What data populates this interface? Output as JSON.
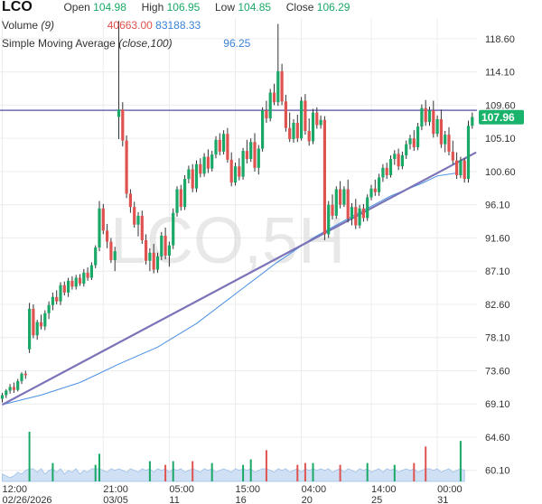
{
  "header": {
    "symbol": "LCO",
    "open_label": "Open",
    "open_value": "104.98",
    "high_label": "High",
    "high_value": "106.95",
    "low_label": "Low",
    "low_value": "104.85",
    "close_label": "Close",
    "close_value": "106.29",
    "volume_label": "Volume",
    "volume_param": "(9)",
    "volume_value_1": "40663.00",
    "volume_value_2": "83188.33",
    "sma_label": "Simple Moving Average",
    "sma_param": "(close,100)",
    "sma_value": "96.25"
  },
  "watermark": "LCO,5H",
  "last_price_label": "107.96",
  "colors": {
    "up": "#1aa867",
    "down": "#e0524f",
    "sma": "#4a90e2",
    "trendline": "#7a73b8",
    "volume": "#a9c8ea",
    "badge": "#19b36b"
  },
  "chart_data": {
    "type": "candlestick",
    "yticks": [
      "118.60",
      "114.10",
      "109.60",
      "105.10",
      "100.60",
      "96.10",
      "91.60",
      "87.10",
      "82.60",
      "78.10",
      "73.60",
      "69.10",
      "64.60",
      "60.10"
    ],
    "xticks": [
      {
        "i": 0,
        "top": "12:00",
        "bottom": "02/26/2026"
      },
      {
        "i": 26,
        "top": "21:00",
        "bottom": "03/05"
      },
      {
        "i": 43,
        "top": "05:00",
        "bottom": "11"
      },
      {
        "i": 60,
        "top": "15:00",
        "bottom": "16"
      },
      {
        "i": 77,
        "top": "04:00",
        "bottom": "20"
      },
      {
        "i": 95,
        "top": "14:00",
        "bottom": "25"
      },
      {
        "i": 112,
        "top": "00:00",
        "bottom": "31"
      }
    ],
    "ylim": [
      58.6,
      121.4
    ],
    "candles": [
      [
        69.8,
        70.6,
        69.3,
        70.3
      ],
      [
        70.3,
        71.1,
        69.9,
        70.9
      ],
      [
        70.9,
        71.8,
        70.5,
        71.4
      ],
      [
        71.4,
        72.0,
        70.6,
        71.0
      ],
      [
        71.0,
        72.5,
        70.8,
        72.2
      ],
      [
        72.2,
        73.4,
        71.8,
        73.2
      ],
      [
        73.2,
        73.6,
        72.5,
        73.0
      ],
      [
        76.5,
        82.8,
        76.0,
        82.0
      ],
      [
        82.0,
        82.6,
        78.0,
        78.4
      ],
      [
        78.4,
        80.5,
        77.8,
        80.2
      ],
      [
        80.2,
        81.2,
        79.2,
        79.6
      ],
      [
        79.6,
        81.8,
        79.1,
        81.4
      ],
      [
        81.4,
        83.0,
        80.6,
        82.5
      ],
      [
        82.5,
        84.2,
        81.8,
        83.6
      ],
      [
        83.6,
        84.5,
        82.6,
        83.0
      ],
      [
        83.0,
        85.6,
        82.5,
        85.2
      ],
      [
        85.2,
        85.7,
        83.8,
        84.2
      ],
      [
        84.2,
        86.2,
        83.6,
        85.8
      ],
      [
        85.8,
        86.4,
        84.6,
        85.0
      ],
      [
        85.0,
        86.6,
        84.6,
        86.2
      ],
      [
        86.2,
        86.7,
        85.1,
        85.4
      ],
      [
        85.4,
        87.4,
        85.0,
        86.9
      ],
      [
        86.9,
        87.6,
        85.8,
        86.2
      ],
      [
        86.2,
        88.3,
        85.9,
        87.9
      ],
      [
        87.9,
        90.6,
        87.5,
        90.3
      ],
      [
        90.3,
        96.6,
        89.8,
        95.6
      ],
      [
        95.6,
        96.2,
        92.1,
        92.6
      ],
      [
        92.6,
        93.5,
        90.2,
        91.1
      ],
      [
        91.1,
        91.6,
        88.2,
        88.6
      ],
      [
        88.6,
        90.4,
        87.1,
        89.8
      ],
      [
        108.0,
        121.0,
        105.0,
        109.0
      ],
      [
        109.0,
        110.0,
        104.0,
        104.8
      ],
      [
        104.8,
        105.5,
        97.0,
        97.6
      ],
      [
        97.6,
        98.2,
        95.0,
        95.8
      ],
      [
        95.8,
        96.5,
        93.0,
        93.4
      ],
      [
        93.4,
        95.1,
        91.8,
        94.6
      ],
      [
        94.6,
        95.3,
        90.8,
        91.3
      ],
      [
        91.3,
        92.1,
        88.0,
        88.5
      ],
      [
        88.5,
        90.2,
        87.1,
        89.6
      ],
      [
        89.6,
        90.8,
        86.8,
        87.3
      ],
      [
        87.3,
        89.6,
        86.9,
        89.1
      ],
      [
        89.1,
        92.4,
        88.6,
        91.9
      ],
      [
        91.9,
        93.0,
        88.7,
        89.2
      ],
      [
        89.2,
        91.1,
        87.7,
        90.6
      ],
      [
        90.6,
        95.6,
        90.1,
        95.0
      ],
      [
        95.0,
        98.6,
        94.5,
        98.2
      ],
      [
        98.2,
        98.8,
        95.3,
        95.8
      ],
      [
        95.8,
        100.1,
        95.4,
        99.6
      ],
      [
        99.6,
        101.4,
        99.0,
        100.9
      ],
      [
        100.9,
        101.6,
        97.8,
        98.3
      ],
      [
        98.3,
        102.1,
        97.8,
        101.6
      ],
      [
        101.6,
        102.4,
        99.8,
        100.3
      ],
      [
        100.3,
        103.1,
        99.9,
        102.6
      ],
      [
        102.6,
        103.6,
        100.4,
        101.0
      ],
      [
        101.0,
        103.4,
        100.6,
        102.9
      ],
      [
        102.9,
        105.4,
        102.4,
        104.9
      ],
      [
        104.9,
        105.8,
        102.8,
        103.3
      ],
      [
        103.3,
        106.2,
        102.9,
        105.7
      ],
      [
        105.7,
        106.5,
        101.8,
        102.2
      ],
      [
        102.2,
        103.2,
        98.6,
        99.1
      ],
      [
        99.1,
        101.8,
        98.7,
        101.3
      ],
      [
        101.3,
        102.4,
        99.4,
        99.9
      ],
      [
        99.9,
        103.8,
        99.5,
        103.4
      ],
      [
        103.4,
        104.9,
        101.7,
        102.3
      ],
      [
        102.3,
        105.1,
        101.9,
        104.6
      ],
      [
        104.6,
        105.8,
        100.6,
        101.1
      ],
      [
        101.1,
        104.2,
        100.2,
        103.7
      ],
      [
        103.7,
        109.3,
        103.3,
        108.9
      ],
      [
        108.9,
        110.2,
        107.2,
        107.8
      ],
      [
        107.8,
        111.8,
        107.4,
        111.3
      ],
      [
        111.3,
        112.5,
        109.6,
        110.0
      ],
      [
        110.0,
        120.6,
        109.5,
        114.2
      ],
      [
        114.2,
        115.2,
        109.6,
        110.1
      ],
      [
        110.1,
        111.0,
        106.0,
        106.5
      ],
      [
        106.5,
        108.6,
        104.6,
        105.0
      ],
      [
        105.0,
        107.7,
        104.5,
        107.2
      ],
      [
        107.2,
        108.3,
        104.6,
        105.1
      ],
      [
        105.1,
        110.7,
        104.8,
        110.2
      ],
      [
        110.2,
        111.1,
        105.6,
        106.1
      ],
      [
        106.1,
        107.8,
        104.1,
        104.7
      ],
      [
        104.7,
        109.1,
        104.3,
        108.6
      ],
      [
        108.6,
        109.3,
        106.4,
        106.9
      ],
      [
        106.9,
        108.2,
        106.4,
        107.6
      ],
      [
        107.6,
        108.1,
        91.3,
        92.1
      ],
      [
        92.1,
        96.6,
        91.6,
        96.1
      ],
      [
        96.1,
        97.5,
        94.1,
        94.6
      ],
      [
        94.6,
        98.6,
        94.2,
        98.2
      ],
      [
        98.2,
        99.3,
        95.6,
        96.1
      ],
      [
        96.1,
        98.6,
        95.8,
        98.2
      ],
      [
        98.2,
        99.5,
        93.7,
        94.2
      ],
      [
        94.2,
        96.3,
        93.3,
        95.8
      ],
      [
        95.8,
        96.9,
        92.8,
        93.3
      ],
      [
        93.3,
        96.1,
        92.9,
        95.6
      ],
      [
        95.6,
        96.2,
        93.8,
        94.3
      ],
      [
        94.3,
        97.5,
        93.9,
        97.1
      ],
      [
        97.1,
        98.8,
        96.7,
        98.3
      ],
      [
        98.3,
        99.5,
        97.3,
        97.8
      ],
      [
        97.8,
        100.3,
        97.3,
        99.8
      ],
      [
        99.8,
        101.6,
        99.2,
        101.1
      ],
      [
        101.1,
        101.8,
        99.6,
        100.1
      ],
      [
        100.1,
        102.8,
        99.8,
        102.3
      ],
      [
        102.3,
        103.5,
        101.5,
        103.0
      ],
      [
        103.0,
        103.7,
        100.8,
        101.3
      ],
      [
        101.3,
        103.3,
        100.9,
        102.8
      ],
      [
        102.8,
        104.8,
        102.3,
        104.3
      ],
      [
        104.3,
        105.6,
        103.6,
        105.1
      ],
      [
        105.1,
        106.2,
        103.4,
        103.9
      ],
      [
        103.9,
        107.2,
        103.5,
        106.7
      ],
      [
        106.7,
        109.7,
        106.2,
        109.2
      ],
      [
        109.2,
        110.3,
        106.8,
        107.3
      ],
      [
        107.3,
        109.4,
        106.8,
        108.9
      ],
      [
        108.9,
        110.2,
        105.2,
        105.7
      ],
      [
        105.7,
        108.2,
        105.3,
        107.7
      ],
      [
        107.7,
        109.0,
        103.8,
        104.3
      ],
      [
        104.3,
        106.1,
        103.2,
        105.6
      ],
      [
        105.6,
        106.6,
        102.8,
        103.3
      ],
      [
        103.3,
        104.8,
        101.6,
        102.1
      ],
      [
        102.1,
        103.2,
        99.6,
        100.1
      ],
      [
        100.1,
        102.6,
        99.7,
        102.1
      ],
      [
        102.1,
        102.4,
        99.1,
        99.6
      ],
      [
        99.6,
        107.5,
        99.1,
        106.8
      ],
      [
        106.8,
        108.6,
        106.4,
        108.0
      ]
    ],
    "volumes": [
      0.4,
      0.3,
      0.2,
      0.3,
      0.5,
      0.4,
      0.6,
      2.7,
      0.8,
      0.5,
      0.7,
      0.4,
      0.6,
      1.0,
      0.5,
      0.7,
      0.4,
      0.6,
      0.5,
      0.8,
      0.4,
      0.6,
      0.5,
      0.7,
      0.9,
      1.5,
      0.6,
      0.5,
      0.8,
      0.6,
      0.7,
      0.6,
      0.5,
      0.7,
      0.6,
      0.5,
      0.8,
      0.6,
      1.1,
      0.5,
      0.7,
      0.6,
      0.9,
      0.5,
      1.1,
      0.6,
      0.8,
      0.5,
      0.6,
      1.1,
      0.6,
      0.5,
      0.7,
      0.6,
      1.0,
      0.5,
      0.6,
      0.8,
      0.6,
      0.5,
      0.7,
      0.6,
      0.9,
      0.6,
      1.2,
      0.5,
      0.6,
      0.7,
      1.7,
      0.6,
      0.5,
      0.8,
      0.6,
      0.7,
      0.5,
      0.6,
      0.9,
      0.5,
      1.0,
      0.6,
      1.0,
      0.6,
      0.7,
      0.6,
      0.8,
      0.5,
      0.6,
      0.9,
      0.5,
      0.7,
      0.6,
      0.5,
      0.7,
      0.6,
      1.0,
      0.5,
      0.6,
      0.8,
      0.5,
      0.7,
      0.6,
      0.9,
      0.5,
      0.6,
      0.7,
      0.6,
      1.0,
      0.5,
      0.6,
      1.9,
      0.7,
      0.6,
      0.8,
      0.5,
      0.6,
      0.7,
      0.5,
      0.6,
      2.2,
      0.6
    ],
    "volume_max": 2.7,
    "sma": [
      [
        0,
        69.0
      ],
      [
        10,
        70.3
      ],
      [
        20,
        72.0
      ],
      [
        30,
        74.5
      ],
      [
        40,
        76.8
      ],
      [
        50,
        80.0
      ],
      [
        60,
        84.0
      ],
      [
        70,
        88.0
      ],
      [
        80,
        91.6
      ],
      [
        90,
        94.5
      ],
      [
        100,
        97.3
      ],
      [
        108,
        99.0
      ],
      [
        112,
        100.0
      ],
      [
        117,
        100.4
      ]
    ],
    "trendline": [
      [
        0,
        69.0
      ],
      [
        122,
        103.2
      ]
    ],
    "hline": 108.9,
    "last_price": 107.96
  }
}
